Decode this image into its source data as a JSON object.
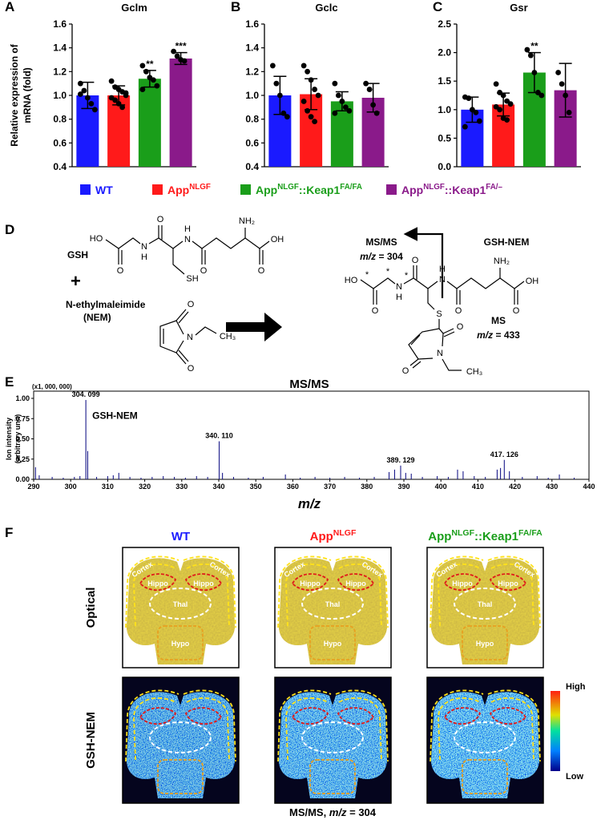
{
  "legend": [
    {
      "parts": [
        "WT"
      ],
      "color": "#1a1aff"
    },
    {
      "parts": [
        "App",
        "NLGF"
      ],
      "color": "#ff1a1a"
    },
    {
      "parts": [
        "App",
        "NLGF",
        "::Keap1",
        "FA/FA"
      ],
      "color": "#1a9e1a"
    },
    {
      "parts": [
        "App",
        "NLGF",
        "::Keap1",
        "FA/–"
      ],
      "color": "#8a1a8a"
    }
  ],
  "chart_data": [
    {
      "type": "bar",
      "panel": "A",
      "title": "Gclm",
      "ylabel": [
        "Relative expression of",
        "mRNA (fold)"
      ],
      "ylim": [
        0.4,
        1.6
      ],
      "yticks": [
        0.4,
        0.6,
        0.8,
        {
          "value": 1,
          "label": "1.0"
        },
        1.2,
        1.4,
        1.6
      ],
      "series": [
        {
          "values": [
            1.0
          ],
          "error": [
            0.11
          ],
          "points": [
            1.1,
            1.04,
            0.98,
            0.93,
            0.88,
            1.01
          ]
        },
        {
          "values": [
            1.0
          ],
          "error": [
            0.08
          ],
          "points": [
            1.12,
            1.07,
            1.05,
            1.03,
            1.0,
            0.98,
            0.96,
            0.93,
            0.9,
            1.02
          ]
        },
        {
          "values": [
            1.14
          ],
          "error": [
            0.07
          ],
          "points": [
            1.25,
            1.2,
            1.15,
            1.13,
            1.08,
            1.05
          ],
          "significance": "**"
        },
        {
          "values": [
            1.31
          ],
          "error": [
            0.05
          ],
          "points": [
            1.37,
            1.33,
            1.3,
            1.29
          ],
          "significance": "***"
        }
      ]
    },
    {
      "type": "bar",
      "panel": "B",
      "title": "Gclc",
      "ylim": [
        0.4,
        1.6
      ],
      "yticks": [
        0.4,
        0.6,
        0.8,
        {
          "value": 1,
          "label": "1.0"
        },
        1.2,
        1.4,
        1.6
      ],
      "series": [
        {
          "values": [
            1.0
          ],
          "error": [
            0.16
          ],
          "points": [
            1.25,
            1.1,
            1.0,
            0.85,
            0.82
          ]
        },
        {
          "values": [
            1.01
          ],
          "error": [
            0.13
          ],
          "points": [
            1.25,
            1.2,
            1.13,
            1.05,
            1.0,
            0.95,
            0.87,
            0.82,
            0.78
          ]
        },
        {
          "values": [
            0.95
          ],
          "error": [
            0.08
          ],
          "points": [
            1.1,
            1.0,
            0.95,
            0.9,
            0.87,
            0.85
          ]
        },
        {
          "values": [
            0.98
          ],
          "error": [
            0.12
          ],
          "points": [
            1.1,
            1.05,
            0.92,
            0.85
          ]
        }
      ]
    },
    {
      "type": "bar",
      "panel": "C",
      "title": "Gsr",
      "ylim": [
        0,
        2.5
      ],
      "yticks": [
        {
          "value": 0,
          "label": "0.0"
        },
        0.5,
        {
          "value": 1,
          "label": "1.0"
        },
        1.5,
        {
          "value": 2,
          "label": "2.0"
        },
        2.5
      ],
      "series": [
        {
          "values": [
            1.0
          ],
          "error": [
            0.22
          ],
          "points": [
            1.22,
            1.2,
            1.0,
            0.95,
            0.8,
            0.7
          ]
        },
        {
          "values": [
            1.09
          ],
          "error": [
            0.2
          ],
          "points": [
            1.45,
            1.3,
            1.25,
            1.15,
            1.1,
            1.05,
            1.0,
            0.85,
            0.82
          ]
        },
        {
          "values": [
            1.65
          ],
          "error": [
            0.35
          ],
          "points": [
            2.05,
            1.95,
            1.65,
            1.3,
            1.25
          ],
          "significance": "**"
        },
        {
          "values": [
            1.34
          ],
          "error": [
            0.47
          ],
          "points": [
            1.65,
            1.45,
            1.25,
            0.95
          ]
        }
      ]
    },
    {
      "type": "spectrum",
      "panel": "E",
      "title": "MS/MS",
      "ylabel": [
        "Ion intensity",
        "(arbitrary unit)"
      ],
      "multiplier": "(x1, 000, 000)",
      "xlabel": "m/z",
      "annotation": "GSH-NEM",
      "color": "#1a1a8a",
      "label_color": "#1a1acc",
      "xlim": [
        290,
        440
      ],
      "xticks": [
        290,
        300,
        310,
        320,
        330,
        340,
        350,
        360,
        370,
        380,
        390,
        400,
        410,
        420,
        430,
        440
      ],
      "ylim": [
        0,
        1
      ],
      "yticks": [
        {
          "value": 0,
          "label": "0.00"
        },
        {
          "value": 0.25,
          "label": "0.25"
        },
        {
          "value": 0.5,
          "label": "0.50"
        },
        {
          "value": 0.75,
          "label": "0.75"
        },
        {
          "value": 1,
          "label": "1.00"
        }
      ],
      "x": [
        290.5,
        291.5,
        295,
        298,
        301,
        302.5,
        304.099,
        304.6,
        307,
        310,
        311.5,
        313,
        316,
        319,
        322,
        325,
        328,
        331,
        334,
        337,
        340.11,
        341,
        344,
        348,
        352,
        358,
        362,
        366,
        370,
        374,
        378,
        382,
        386,
        387.5,
        389.129,
        390.5,
        392,
        395,
        399,
        402,
        404.5,
        406,
        409,
        412,
        415.2,
        416.1,
        417.126,
        418.5,
        422,
        426,
        429,
        432,
        436
      ],
      "values": [
        0.15,
        0.05,
        0.03,
        0.02,
        0.03,
        0.04,
        0.98,
        0.35,
        0.03,
        0.04,
        0.05,
        0.08,
        0.03,
        0.02,
        0.03,
        0.04,
        0.03,
        0.02,
        0.04,
        0.03,
        0.47,
        0.08,
        0.03,
        0.02,
        0.03,
        0.06,
        0.02,
        0.03,
        0.02,
        0.03,
        0.02,
        0.03,
        0.09,
        0.12,
        0.17,
        0.08,
        0.07,
        0.03,
        0.04,
        0.03,
        0.12,
        0.1,
        0.04,
        0.03,
        0.12,
        0.14,
        0.24,
        0.1,
        0.03,
        0.04,
        0.02,
        0.06,
        0.02
      ],
      "x_labels": [
        null,
        null,
        null,
        null,
        null,
        null,
        "304. 099",
        null,
        null,
        null,
        null,
        null,
        null,
        null,
        null,
        null,
        null,
        null,
        null,
        null,
        "340. 110",
        null,
        null,
        null,
        null,
        null,
        null,
        null,
        null,
        null,
        null,
        null,
        null,
        null,
        "389. 129",
        null,
        null,
        null,
        null,
        null,
        null,
        null,
        null,
        null,
        null,
        null,
        "417. 126",
        null,
        null,
        null,
        null,
        null,
        null
      ]
    }
  ],
  "scheme": {
    "panel": "D",
    "gsh_label": "GSH",
    "plus": "+",
    "nem_label": [
      "N-ethylmaleimide",
      "(NEM)"
    ],
    "gsh_atoms": [
      "HO",
      "O",
      "N",
      "H",
      "O",
      "N",
      "H",
      "O",
      "NH₂",
      "O",
      "OH",
      "SH"
    ],
    "nem_atoms": [
      "O",
      "N",
      "O",
      "CH₃"
    ],
    "product_atoms": [
      "HO",
      "O",
      "*",
      "*",
      "N",
      "H",
      "*",
      "O",
      "N",
      "H",
      "O",
      "NH₂",
      "O",
      "OH",
      "S",
      "O",
      "N",
      "O",
      "CH₃"
    ],
    "msms_label": "MS/MS",
    "msms_mz": [
      "m/z",
      " = 304"
    ],
    "product_label": "GSH-NEM",
    "ms_label": "MS",
    "ms_mz": [
      "m/z",
      " = 433"
    ]
  },
  "imaging": {
    "panel": "F",
    "columns": [
      {
        "parts": [
          "WT"
        ],
        "color": "#1a1aff"
      },
      {
        "parts": [
          "App",
          "NLGF"
        ],
        "color": "#ff1a1a"
      },
      {
        "parts": [
          "App",
          "NLGF",
          "::Keap1",
          "FA/FA"
        ],
        "color": "#1a9e1a"
      }
    ],
    "rows": [
      "Optical",
      "GSH-NEM"
    ],
    "regions": [
      "Cortex",
      "Cortex",
      "Hippo",
      "Hippo",
      "Thal",
      "Hypo"
    ],
    "colorbar": {
      "high": "High",
      "low": "Low"
    },
    "caption": [
      "MS/MS, ",
      "m/z",
      " = 304"
    ]
  }
}
